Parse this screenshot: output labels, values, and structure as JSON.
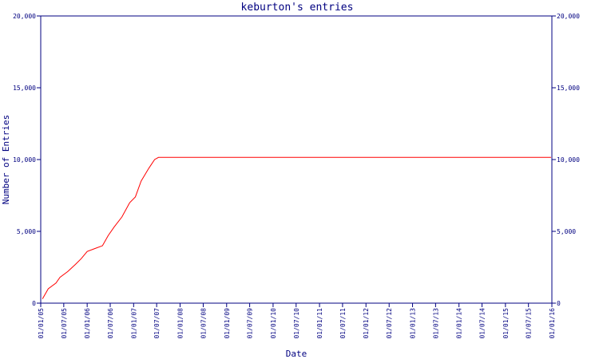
{
  "chart_data": {
    "type": "line",
    "title": "keburton's entries",
    "xlabel": "Date",
    "ylabel": "Number of Entries",
    "ylim": [
      0,
      20000
    ],
    "yticks": [
      0,
      5000,
      10000,
      15000,
      20000
    ],
    "ytick_labels": [
      "0",
      "5,000",
      "10,000",
      "15,000",
      "20,000"
    ],
    "xlim": [
      "2005-01-01",
      "2016-01-01"
    ],
    "xtick_values": [
      "2005-01-01",
      "2005-07-01",
      "2006-01-01",
      "2006-07-01",
      "2007-01-01",
      "2007-07-01",
      "2008-01-01",
      "2008-07-01",
      "2009-01-01",
      "2009-07-01",
      "2010-01-01",
      "2010-07-01",
      "2011-01-01",
      "2011-07-01",
      "2012-01-01",
      "2012-07-01",
      "2013-01-01",
      "2013-07-01",
      "2014-01-01",
      "2014-07-01",
      "2015-01-01",
      "2015-07-01",
      "2016-01-01"
    ],
    "xtick_labels": [
      "01/01/05",
      "01/07/05",
      "01/01/06",
      "01/07/06",
      "01/01/07",
      "01/07/07",
      "01/01/08",
      "01/07/08",
      "01/01/09",
      "01/07/09",
      "01/01/10",
      "01/07/10",
      "01/01/11",
      "01/07/11",
      "01/01/12",
      "01/07/12",
      "01/01/13",
      "01/07/13",
      "01/01/14",
      "01/07/14",
      "01/01/15",
      "01/07/15",
      "01/01/16"
    ],
    "grid": false,
    "colors": {
      "axis": "#000080",
      "line": "#ff0000",
      "background": "#ffffff"
    },
    "series": [
      {
        "x": [
          "2005-01-15",
          "2005-03-01",
          "2005-05-01",
          "2005-06-01",
          "2005-08-01",
          "2005-10-01",
          "2005-11-15",
          "2006-01-01",
          "2006-03-01",
          "2006-05-01",
          "2006-06-15",
          "2006-08-01",
          "2006-10-01",
          "2006-12-01",
          "2007-01-15",
          "2007-03-01",
          "2007-05-01",
          "2007-06-15",
          "2007-07-15",
          "2008-01-01",
          "2009-01-01",
          "2011-01-01",
          "2013-01-01",
          "2015-01-01",
          "2015-12-25"
        ],
        "values": [
          300,
          1000,
          1400,
          1800,
          2200,
          2700,
          3100,
          3600,
          3800,
          4000,
          4700,
          5300,
          6000,
          7000,
          7400,
          8500,
          9400,
          10000,
          10150,
          10150,
          10150,
          10150,
          10150,
          10150,
          10150
        ]
      }
    ]
  }
}
